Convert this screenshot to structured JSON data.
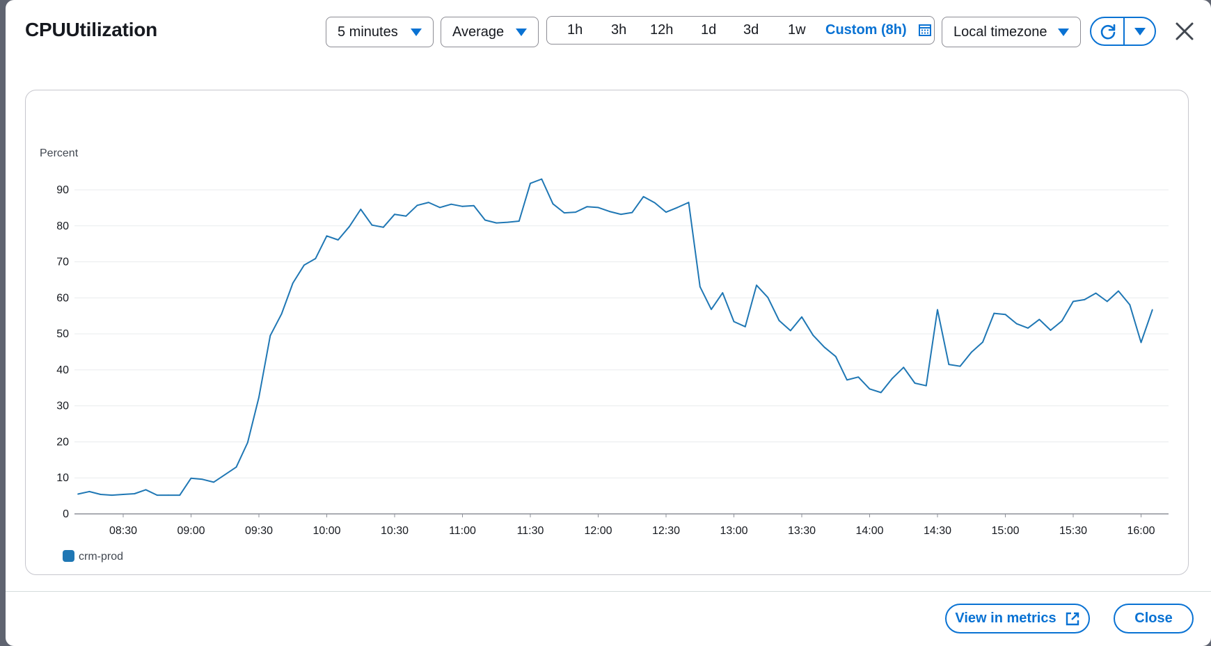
{
  "title": "CPUUtilization",
  "period": "5 minutes",
  "statistic": "Average",
  "ranges": [
    "1h",
    "3h",
    "12h",
    "1d",
    "3d",
    "1w"
  ],
  "custom_range": "Custom (8h)",
  "timezone": "Local timezone",
  "footer": {
    "view_in_metrics": "View in metrics",
    "close": "Close"
  },
  "colors": {
    "accent": "#0972d3",
    "series": "#1f77b4"
  },
  "icons": [
    "calendar-icon",
    "refresh-icon",
    "close-icon",
    "external-link-icon"
  ],
  "chart_data": {
    "type": "line",
    "ylabel": "Percent",
    "ylim": [
      0,
      90
    ],
    "yticks": [
      0,
      10,
      20,
      30,
      40,
      50,
      60,
      70,
      80,
      90
    ],
    "xticks": [
      "08:30",
      "09:00",
      "09:30",
      "10:00",
      "10:30",
      "11:00",
      "11:30",
      "12:00",
      "12:30",
      "13:00",
      "13:30",
      "14:00",
      "14:30",
      "15:00",
      "15:30",
      "16:00"
    ],
    "grid": true,
    "legend": "bottom-left",
    "series": [
      {
        "name": "crm-prod",
        "x": [
          "08:10",
          "08:15",
          "08:20",
          "08:25",
          "08:30",
          "08:35",
          "08:40",
          "08:45",
          "08:50",
          "08:55",
          "09:00",
          "09:05",
          "09:10",
          "09:15",
          "09:20",
          "09:25",
          "09:30",
          "09:35",
          "09:40",
          "09:45",
          "09:50",
          "09:55",
          "10:00",
          "10:05",
          "10:10",
          "10:15",
          "10:20",
          "10:25",
          "10:30",
          "10:35",
          "10:40",
          "10:45",
          "10:50",
          "10:55",
          "11:00",
          "11:05",
          "11:10",
          "11:15",
          "11:20",
          "11:25",
          "11:30",
          "11:35",
          "11:40",
          "11:45",
          "11:50",
          "11:55",
          "12:00",
          "12:05",
          "12:10",
          "12:15",
          "12:20",
          "12:25",
          "12:30",
          "12:35",
          "12:40",
          "12:45",
          "12:50",
          "12:55",
          "13:00",
          "13:05",
          "13:10",
          "13:15",
          "13:20",
          "13:25",
          "13:30",
          "13:35",
          "13:40",
          "13:45",
          "13:50",
          "13:55",
          "14:00",
          "14:05",
          "14:10",
          "14:15",
          "14:20",
          "14:25",
          "14:30",
          "14:35",
          "14:40",
          "14:45",
          "14:50",
          "14:55",
          "15:00",
          "15:05",
          "15:10",
          "15:15",
          "15:20",
          "15:25",
          "15:30",
          "15:35",
          "15:40",
          "15:45",
          "15:50",
          "15:55",
          "16:00",
          "16:05"
        ],
        "values": [
          5.5,
          6.2,
          5.4,
          5.2,
          5.4,
          5.6,
          6.7,
          5.2,
          5.2,
          5.2,
          9.9,
          9.6,
          8.8,
          10.9,
          13.0,
          19.8,
          32.4,
          49.5,
          55.5,
          64.1,
          69.1,
          70.9,
          77.2,
          76.1,
          79.8,
          84.6,
          80.2,
          79.6,
          83.2,
          82.7,
          85.7,
          86.5,
          85.1,
          86.0,
          85.4,
          85.6,
          81.6,
          80.8,
          81.0,
          81.3,
          91.8,
          93.0,
          86.1,
          83.6,
          83.8,
          85.3,
          85.1,
          84.0,
          83.2,
          83.7,
          88.1,
          86.4,
          83.8,
          85.1,
          86.5,
          63.1,
          56.8,
          61.4,
          53.4,
          52.0,
          63.5,
          60.1,
          53.7,
          50.9,
          54.7,
          49.6,
          46.3,
          43.7,
          37.2,
          38.0,
          34.7,
          33.7,
          37.6,
          40.7,
          36.3,
          35.6,
          56.7,
          41.5,
          41.0,
          44.9,
          47.7,
          55.7,
          55.4,
          52.8,
          51.6,
          54.0,
          51.0,
          53.6,
          59.0,
          59.5,
          61.3,
          59.0,
          61.9,
          58.1,
          47.6,
          56.7
        ]
      }
    ]
  }
}
